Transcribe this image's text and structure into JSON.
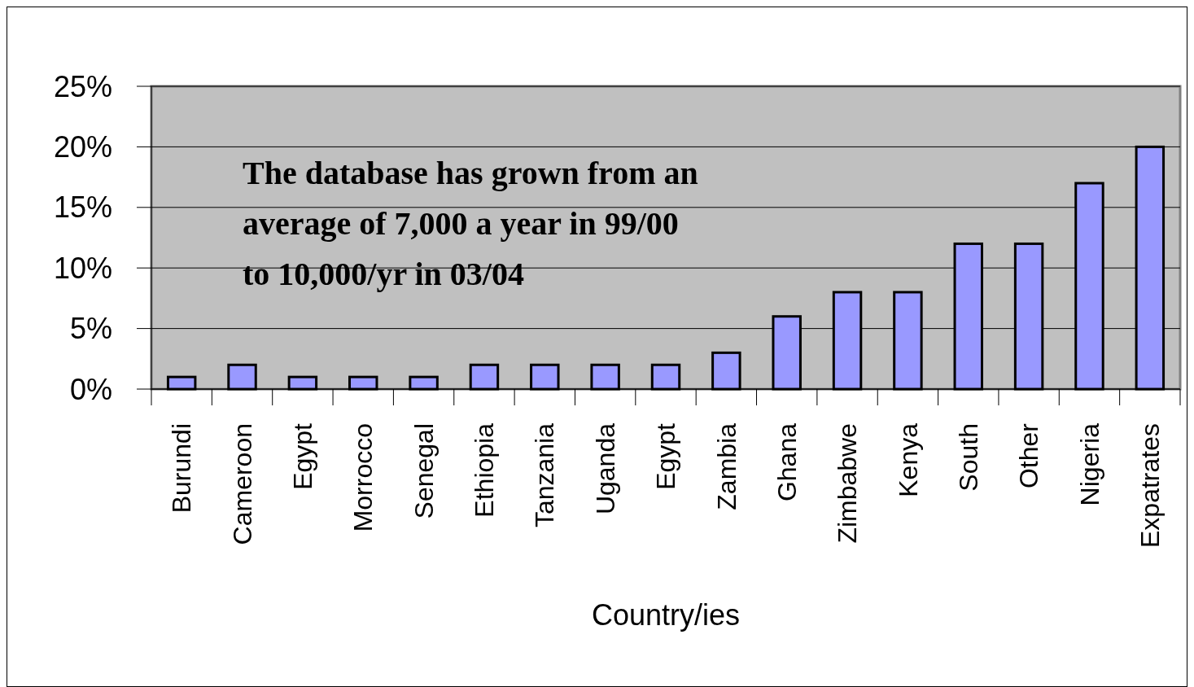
{
  "chart_data": {
    "type": "bar",
    "xlabel": "Country/ies",
    "categories": [
      "Burundi",
      "Cameroon",
      "Egypt",
      "Morrocco",
      "Senegal",
      "Ethiopia",
      "Tanzania",
      "Uganda",
      "Egypt",
      "Zambia",
      "Ghana",
      "Zimbabwe",
      "Kenya",
      "South",
      "Other",
      "Nigeria",
      "Expatrates"
    ],
    "values": [
      1,
      2,
      1,
      1,
      1,
      2,
      2,
      2,
      2,
      3,
      6,
      8,
      8,
      12,
      12,
      17,
      20
    ],
    "color": "#9999ff",
    "ylim": [
      0,
      25
    ],
    "yticks": [
      {
        "value": 0,
        "label": "0%"
      },
      {
        "value": 5,
        "label": "5%"
      },
      {
        "value": 10,
        "label": "10%"
      },
      {
        "value": 15,
        "label": "15%"
      },
      {
        "value": 20,
        "label": "20%"
      },
      {
        "value": 25,
        "label": "25%"
      }
    ],
    "grid": "y",
    "annotations": [
      "The database has grown from an average of 7,000 a year in 99/00 to 10,000/yr in 03/04"
    ]
  }
}
